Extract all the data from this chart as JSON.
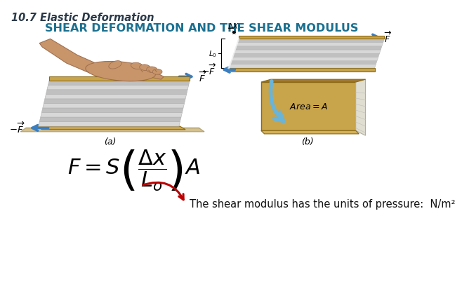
{
  "title_text": "10.7 Elastic Deformation",
  "title_color": "#2B3A4A",
  "subtitle_text": "SHEAR DEFORMATION AND THE SHEAR MODULUS",
  "subtitle_color": "#1A7090",
  "formula_color": "#000000",
  "arrow_note": "The shear modulus has the units of pressure:  N/m²",
  "arrow_note_color": "#111111",
  "arrow_color": "#BB0000",
  "label_a": "(a)",
  "label_b": "(b)",
  "background_color": "#FFFFFF",
  "gold_face": "#C8A44A",
  "gold_dark": "#A07830",
  "gold_shadow": "#8B6914",
  "page_light": "#D8D8D8",
  "page_dark": "#C0C0C0",
  "page_edge": "#B0B0B0",
  "ground_color": "#D4C090",
  "ground_edge": "#B0A070",
  "arrow_blue": "#3A7EC0",
  "hand_skin": "#C8956A",
  "hand_dark": "#A07050",
  "blue_arrow_fill": "#6AB4D8"
}
